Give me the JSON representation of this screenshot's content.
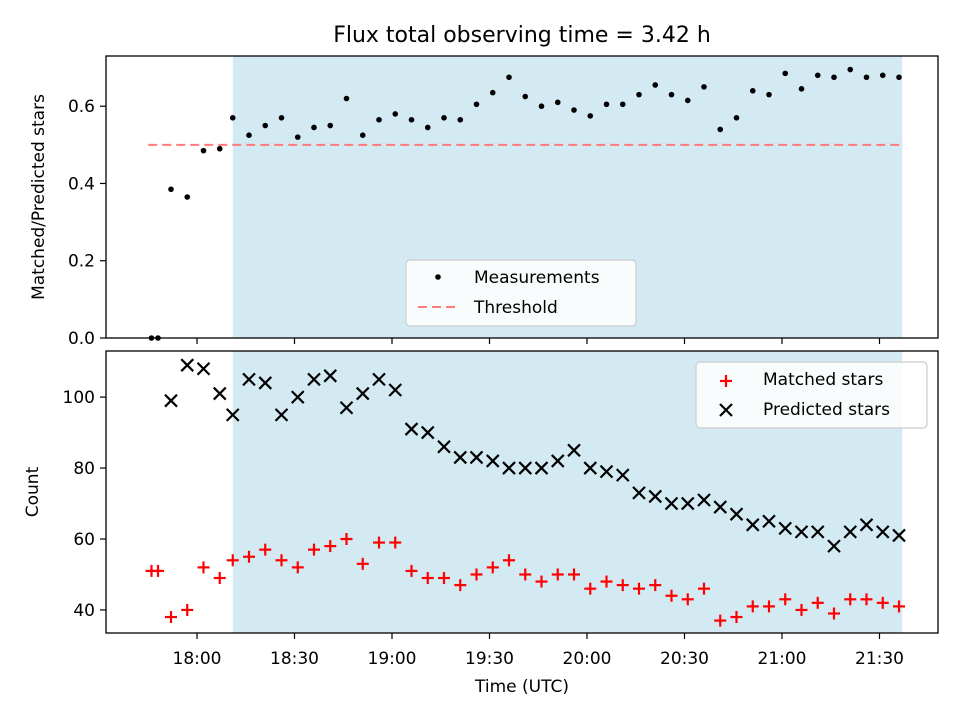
{
  "title": "Flux total observing time = 3.42 h",
  "colors": {
    "span": "#add8e6",
    "measurement": "#000000",
    "threshold": "#ff7b7b",
    "matched": "#ff0000",
    "predicted": "#000000"
  },
  "chart_data": [
    {
      "type": "scatter",
      "ylabel": "Matched/Predicted stars",
      "ylim": [
        0,
        0.73
      ],
      "yticks": [
        0.0,
        0.2,
        0.4,
        0.6
      ],
      "ytick_labels": [
        "0.0",
        "0.2",
        "0.4",
        "0.6"
      ],
      "observing_span": [
        "18:11",
        "21:37"
      ],
      "threshold": 0.5,
      "threshold_span": [
        "17:45",
        "21:37"
      ],
      "legend": {
        "position": "lower center",
        "entries": [
          "Measurements",
          "Threshold"
        ]
      },
      "series": [
        {
          "name": "Measurements",
          "marker": "dot",
          "x": [
            "17:46",
            "17:48",
            "17:52",
            "17:57",
            "18:02",
            "18:07",
            "18:11",
            "18:16",
            "18:21",
            "18:26",
            "18:31",
            "18:36",
            "18:41",
            "18:46",
            "18:51",
            "18:56",
            "19:01",
            "19:06",
            "19:11",
            "19:16",
            "19:21",
            "19:26",
            "19:31",
            "19:36",
            "19:41",
            "19:46",
            "19:51",
            "19:56",
            "20:01",
            "20:06",
            "20:11",
            "20:16",
            "20:21",
            "20:26",
            "20:31",
            "20:36",
            "20:41",
            "20:46",
            "20:51",
            "20:56",
            "21:01",
            "21:06",
            "21:11",
            "21:16",
            "21:21",
            "21:26",
            "21:31",
            "21:36"
          ],
          "y": [
            0.0,
            0.0,
            0.385,
            0.365,
            0.485,
            0.49,
            0.57,
            0.525,
            0.55,
            0.57,
            0.52,
            0.545,
            0.55,
            0.62,
            0.525,
            0.565,
            0.58,
            0.565,
            0.545,
            0.57,
            0.565,
            0.605,
            0.635,
            0.675,
            0.625,
            0.6,
            0.61,
            0.59,
            0.575,
            0.605,
            0.605,
            0.63,
            0.655,
            0.63,
            0.615,
            0.65,
            0.54,
            0.57,
            0.64,
            0.63,
            0.685,
            0.645,
            0.68,
            0.675,
            0.695,
            0.675,
            0.68,
            0.675
          ]
        },
        {
          "name": "Threshold",
          "marker": "dashed-line",
          "x": [
            "17:45",
            "21:37"
          ],
          "y": [
            0.5,
            0.5
          ]
        }
      ]
    },
    {
      "type": "scatter",
      "ylabel": "Count",
      "xlabel": "Time (UTC)",
      "ylim": [
        33.5,
        113
      ],
      "yticks": [
        40,
        60,
        80,
        100
      ],
      "ytick_labels": [
        "40",
        "60",
        "80",
        "100"
      ],
      "xlim": [
        "17:32",
        "21:48"
      ],
      "xticks": [
        "18:00",
        "18:30",
        "19:00",
        "19:30",
        "20:00",
        "20:30",
        "21:00",
        "21:30"
      ],
      "observing_span": [
        "18:11",
        "21:37"
      ],
      "legend": {
        "position": "upper right",
        "entries": [
          "Matched stars",
          "Predicted stars"
        ]
      },
      "series": [
        {
          "name": "Matched stars",
          "marker": "plus",
          "x": [
            "17:46",
            "17:48",
            "17:52",
            "17:57",
            "18:02",
            "18:07",
            "18:11",
            "18:16",
            "18:21",
            "18:26",
            "18:31",
            "18:36",
            "18:41",
            "18:46",
            "18:51",
            "18:56",
            "19:01",
            "19:06",
            "19:11",
            "19:16",
            "19:21",
            "19:26",
            "19:31",
            "19:36",
            "19:41",
            "19:46",
            "19:51",
            "19:56",
            "20:01",
            "20:06",
            "20:11",
            "20:16",
            "20:21",
            "20:26",
            "20:31",
            "20:36",
            "20:41",
            "20:46",
            "20:51",
            "20:56",
            "21:01",
            "21:06",
            "21:11",
            "21:16",
            "21:21",
            "21:26",
            "21:31",
            "21:36"
          ],
          "y": [
            51,
            51,
            38,
            40,
            52,
            49,
            54,
            55,
            57,
            54,
            52,
            57,
            58,
            60,
            53,
            59,
            59,
            51,
            49,
            49,
            47,
            50,
            52,
            54,
            50,
            48,
            50,
            50,
            46,
            48,
            47,
            46,
            47,
            44,
            43,
            46,
            37,
            38,
            41,
            41,
            43,
            40,
            42,
            39,
            43,
            43,
            42,
            41
          ]
        },
        {
          "name": "Predicted stars",
          "marker": "x",
          "x": [
            "17:52",
            "17:57",
            "18:02",
            "18:07",
            "18:11",
            "18:16",
            "18:21",
            "18:26",
            "18:31",
            "18:36",
            "18:41",
            "18:46",
            "18:51",
            "18:56",
            "19:01",
            "19:06",
            "19:11",
            "19:16",
            "19:21",
            "19:26",
            "19:31",
            "19:36",
            "19:41",
            "19:46",
            "19:51",
            "19:56",
            "20:01",
            "20:06",
            "20:11",
            "20:16",
            "20:21",
            "20:26",
            "20:31",
            "20:36",
            "20:41",
            "20:46",
            "20:51",
            "20:56",
            "21:01",
            "21:06",
            "21:11",
            "21:16",
            "21:21",
            "21:26",
            "21:31",
            "21:36"
          ],
          "y": [
            99,
            109,
            108,
            101,
            95,
            105,
            104,
            95,
            100,
            105,
            106,
            97,
            101,
            105,
            102,
            91,
            90,
            86,
            83,
            83,
            82,
            80,
            80,
            80,
            82,
            85,
            80,
            79,
            78,
            73,
            72,
            70,
            70,
            71,
            69,
            67,
            64,
            65,
            63,
            62,
            62,
            58,
            62,
            64,
            62,
            61
          ]
        }
      ]
    }
  ]
}
